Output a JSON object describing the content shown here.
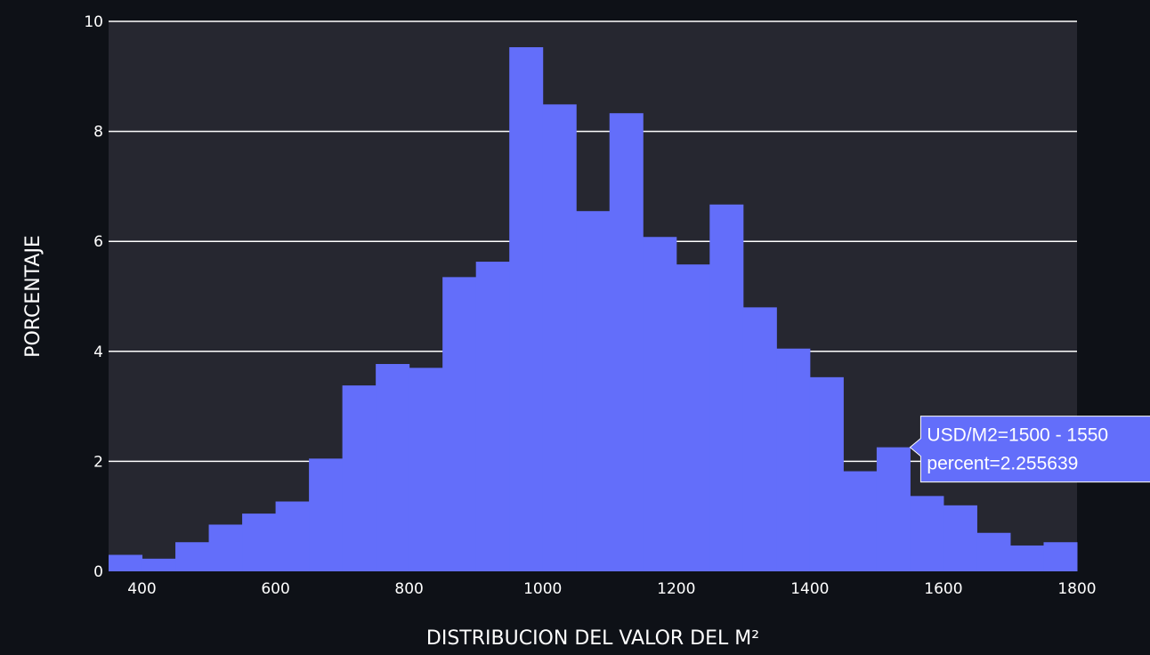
{
  "chart_data": {
    "type": "bar",
    "xlabel": "DISTRIBUCION DEL VALOR DEL M²",
    "ylabel": "PORCENTAJE",
    "xlim": [
      350,
      1800
    ],
    "ylim": [
      0,
      10
    ],
    "bin_width": 50,
    "x_ticks": [
      400,
      600,
      800,
      1000,
      1200,
      1400,
      1600,
      1800
    ],
    "y_ticks": [
      0,
      2,
      4,
      6,
      8,
      10
    ],
    "grid": true,
    "bins": [
      {
        "start": 350,
        "end": 400,
        "value": 0.3
      },
      {
        "start": 400,
        "end": 450,
        "value": 0.23
      },
      {
        "start": 450,
        "end": 500,
        "value": 0.53
      },
      {
        "start": 500,
        "end": 550,
        "value": 0.85
      },
      {
        "start": 550,
        "end": 600,
        "value": 1.05
      },
      {
        "start": 600,
        "end": 650,
        "value": 1.27
      },
      {
        "start": 650,
        "end": 700,
        "value": 2.05
      },
      {
        "start": 700,
        "end": 750,
        "value": 3.38
      },
      {
        "start": 750,
        "end": 800,
        "value": 3.77
      },
      {
        "start": 800,
        "end": 850,
        "value": 3.7
      },
      {
        "start": 850,
        "end": 900,
        "value": 5.35
      },
      {
        "start": 900,
        "end": 950,
        "value": 5.63
      },
      {
        "start": 950,
        "end": 1000,
        "value": 9.53
      },
      {
        "start": 1000,
        "end": 1050,
        "value": 8.49
      },
      {
        "start": 1050,
        "end": 1100,
        "value": 6.55
      },
      {
        "start": 1100,
        "end": 1150,
        "value": 8.33
      },
      {
        "start": 1150,
        "end": 1200,
        "value": 6.08
      },
      {
        "start": 1200,
        "end": 1250,
        "value": 5.58
      },
      {
        "start": 1250,
        "end": 1300,
        "value": 6.67
      },
      {
        "start": 1300,
        "end": 1350,
        "value": 4.8
      },
      {
        "start": 1350,
        "end": 1400,
        "value": 4.05
      },
      {
        "start": 1400,
        "end": 1450,
        "value": 3.53
      },
      {
        "start": 1450,
        "end": 1500,
        "value": 1.82
      },
      {
        "start": 1500,
        "end": 1550,
        "value": 2.255639
      },
      {
        "start": 1550,
        "end": 1600,
        "value": 1.37
      },
      {
        "start": 1600,
        "end": 1650,
        "value": 1.2
      },
      {
        "start": 1650,
        "end": 1700,
        "value": 0.7
      },
      {
        "start": 1700,
        "end": 1750,
        "value": 0.47
      },
      {
        "start": 1750,
        "end": 1800,
        "value": 0.53
      }
    ],
    "tooltip": {
      "bin_index": 23,
      "line1": "USD/M2=1500 - 1550",
      "line2": "percent=2.255639"
    }
  },
  "colors": {
    "page_bg": "#0e1117",
    "plot_bg": "#262730",
    "bar": "#636efa",
    "grid": "#ffffff",
    "text": "#ffffff"
  }
}
